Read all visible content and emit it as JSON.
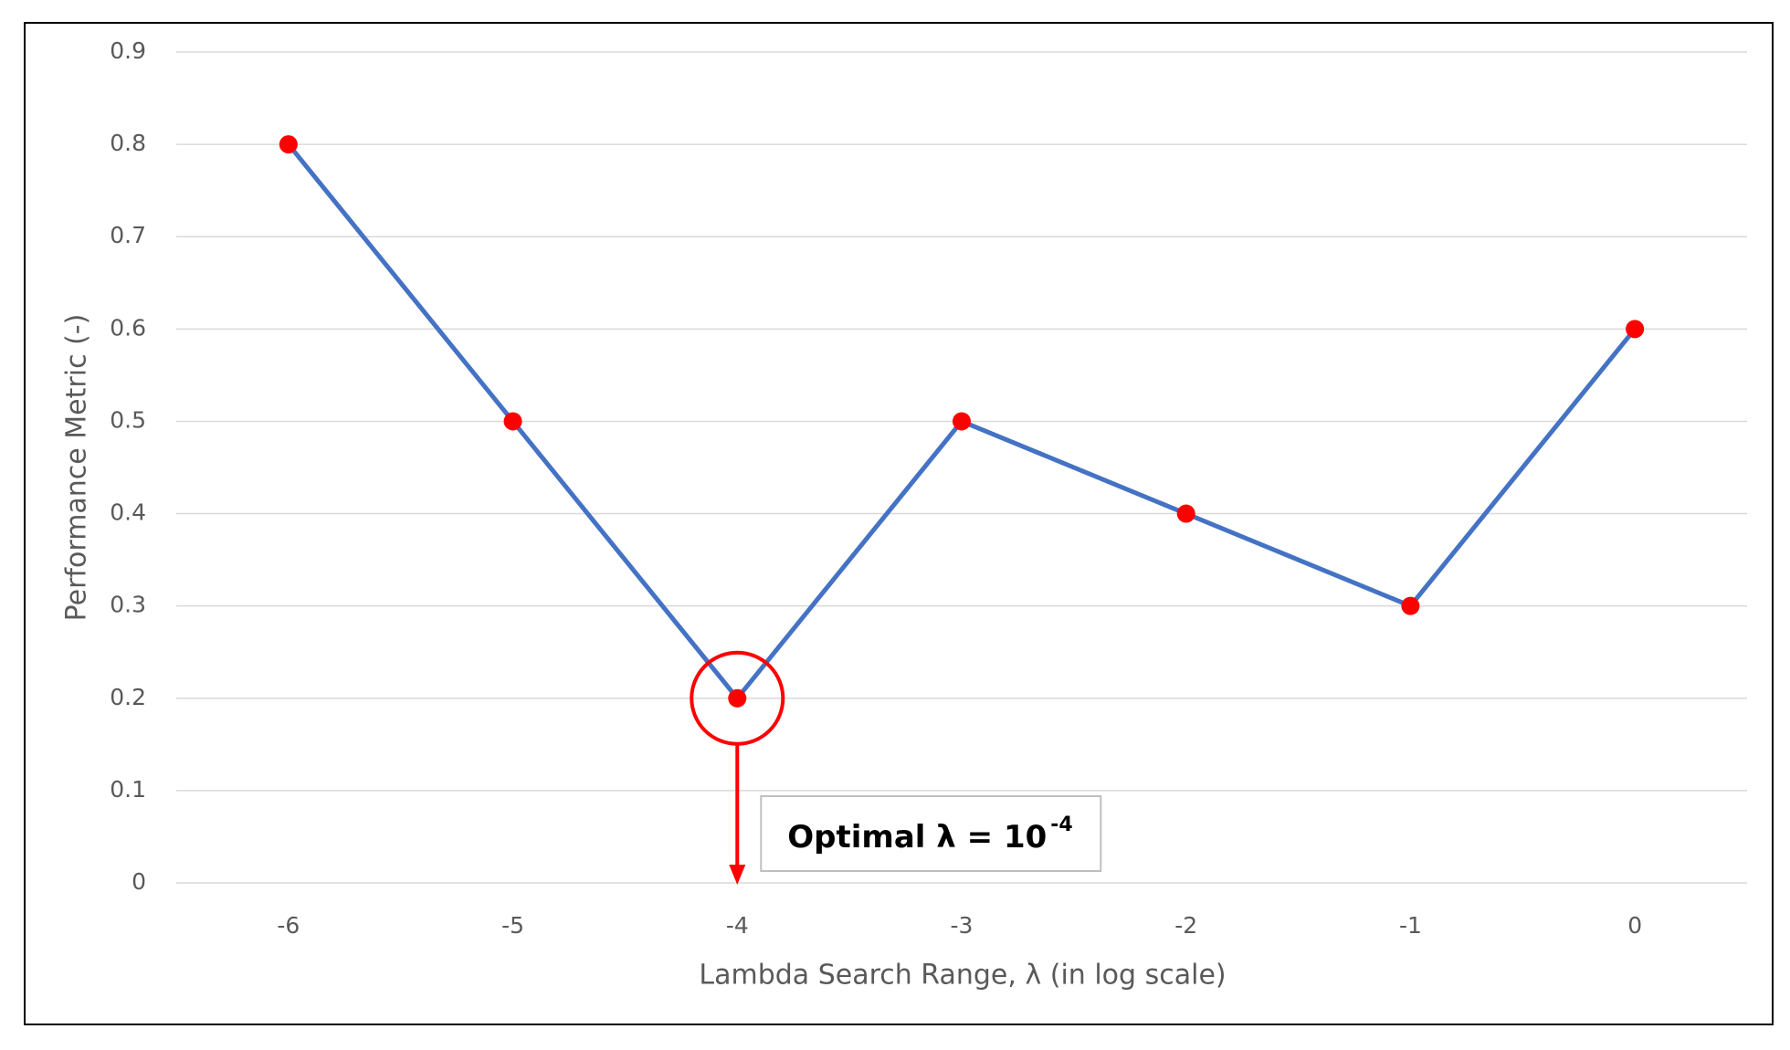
{
  "chart_data": {
    "type": "line",
    "x_label": "Lambda Search Range, λ (in log scale)",
    "y_label": "Performance Metric (-)",
    "x": [
      -6,
      -5,
      -4,
      -3,
      -2,
      -1,
      0
    ],
    "series": [
      {
        "color": "#4472c4",
        "marker_color": "#ff0000",
        "values": [
          0.8,
          0.5,
          0.2,
          0.5,
          0.4,
          0.3,
          0.6
        ]
      }
    ],
    "xlim": [
      -6.5,
      0.5
    ],
    "xticks": [
      -6,
      -5,
      -4,
      -3,
      -2,
      -1,
      0
    ],
    "ylim": [
      0,
      0.9
    ],
    "yticks": [
      0,
      0.1,
      0.2,
      0.3,
      0.4,
      0.5,
      0.6,
      0.7,
      0.8,
      0.9
    ],
    "grid": true,
    "annotation": {
      "text": "Optimal λ = 10",
      "superscript": "-4",
      "x": -4,
      "y": 0.2,
      "color": "#ff0000"
    }
  }
}
